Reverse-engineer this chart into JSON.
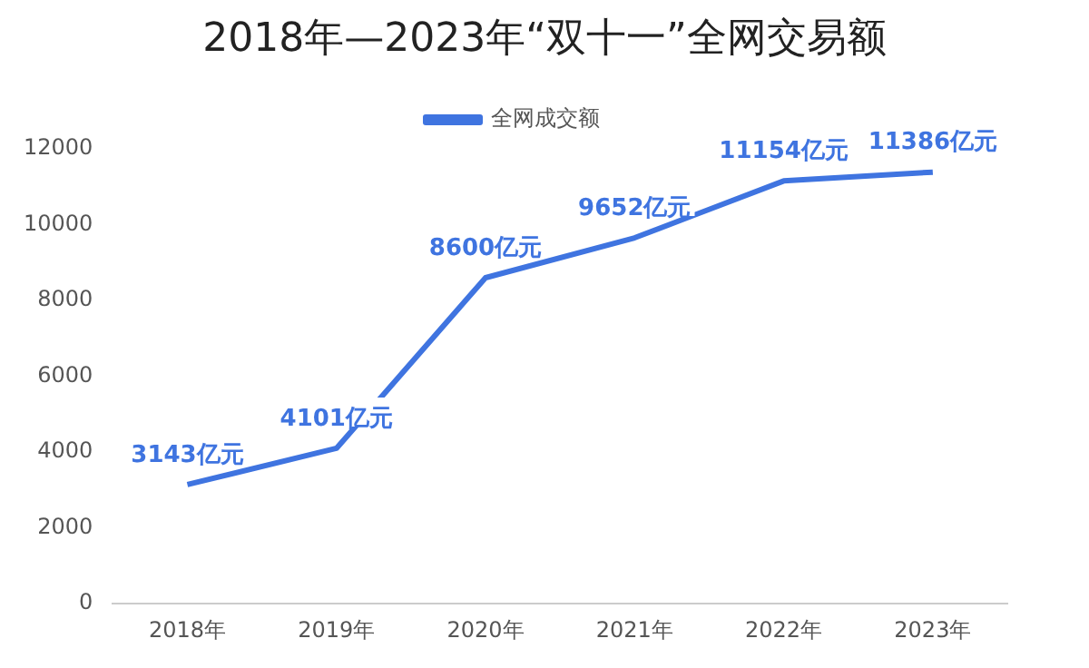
{
  "chart_data": {
    "type": "line",
    "title": "2018年—2023年“双十一”全网交易额",
    "categories": [
      "2018年",
      "2019年",
      "2020年",
      "2021年",
      "2022年",
      "2023年"
    ],
    "series": [
      {
        "name": "全网成交额",
        "color": "#3f74e0",
        "values": [
          3143,
          4101,
          8600,
          9652,
          11154,
          11386
        ],
        "value_labels": [
          "3143亿元",
          "4101亿元",
          "8600亿元",
          "9652亿元",
          "11154亿元",
          "11386亿元"
        ]
      }
    ],
    "ylim": [
      0,
      12000
    ],
    "yticks": [
      0,
      2000,
      4000,
      6000,
      8000,
      10000,
      12000
    ],
    "grid": false,
    "legend": "top",
    "marker": "none",
    "line_style": "solid"
  }
}
